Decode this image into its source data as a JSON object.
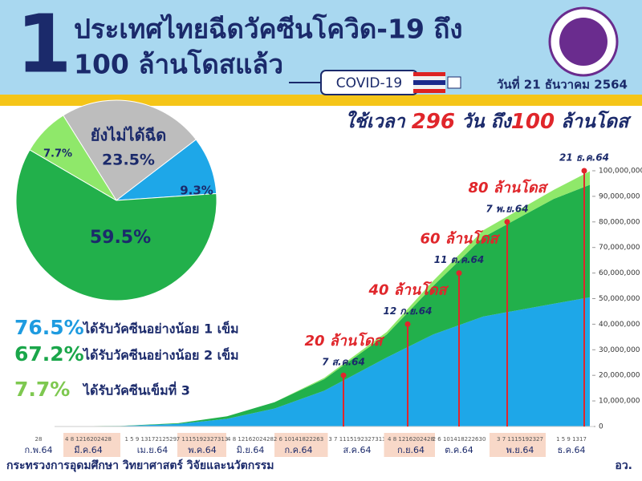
{
  "header": {
    "number": "1",
    "title_line1": "ประเทศไทยฉีดวัคซีนโควิด-19 ถึง",
    "title_line2": "100 ล้านโดสแล้ว",
    "banner": "COVID-19",
    "date": "วันที่ 21 ธันวาคม 2564"
  },
  "headline": [
    "ใช้เวลา ",
    "296",
    " วัน ถึง",
    "100",
    " ล้านโดส"
  ],
  "stats": [
    {
      "percent": "76.5%",
      "text": "ได้รับวัคซีนอย่างน้อย 1 เข็ม",
      "color": "#1e9be0"
    },
    {
      "percent": "67.2%",
      "text": "ได้รับวัคซีนอย่างน้อย 2 เข็ม",
      "color": "#1aa64a"
    },
    {
      "percent": "7.7%",
      "text": "ได้รับวัคซีนเข็มที่ 3",
      "color": "#7ec850"
    }
  ],
  "footer": {
    "ministry": "กระทรวงการอุดมศึกษา วิทยาศาสตร์ วิจัยและนวัตกรรม",
    "short": "อว."
  },
  "chart_data": [
    {
      "type": "pie",
      "categories": [
        "ยังไม่ได้ฉีด",
        null,
        null,
        null
      ],
      "values": [
        23.5,
        9.3,
        59.5,
        7.7
      ],
      "value_labels": [
        "23.5%",
        "9.3%",
        "59.5%",
        "7.7%"
      ],
      "colors": [
        "#bdbdbd",
        "#1ea7e8",
        "#22b04b",
        "#8fe86a"
      ]
    },
    {
      "type": "area",
      "stacked": true,
      "categories": [
        "ก.พ.64",
        "มี.ค.64",
        "เม.ย.64",
        "พ.ค.64",
        "มิ.ย.64",
        "ก.ค.64",
        "ส.ค.64",
        "ก.ย.64",
        "ต.ค.64",
        "พ.ย.64",
        "ธ.ค.64"
      ],
      "day_labels": [
        "28",
        "4 8 1216202428",
        "1 5 9 13172125293",
        "7 1115192327313",
        "4 8 1216202428",
        "2 6 10141822263",
        "3 7 1115192327313",
        "4 8 1216202428",
        "2 6 101418222630",
        "3 7 1115192327",
        "1 5 9 1317"
      ],
      "series": [
        {
          "color": "#1ea7e8",
          "values": [
            0,
            200000,
            1000000,
            3000000,
            7000000,
            14000000,
            27000000,
            36000000,
            43000000,
            48000000,
            50500000
          ]
        },
        {
          "color": "#22b04b",
          "values": [
            0,
            50000,
            300000,
            1000000,
            2500000,
            4500000,
            9000000,
            19000000,
            31000000,
            41000000,
            44000000
          ]
        },
        {
          "color": "#8fe86a",
          "values": [
            0,
            0,
            0,
            0,
            0,
            500000,
            1000000,
            2000000,
            2700000,
            3500000,
            5300000
          ]
        }
      ],
      "ylim": [
        0,
        100000000
      ],
      "yticks": [
        0,
        {
          "value": 10000000,
          "label": "10,000,000"
        },
        {
          "value": 20000000,
          "label": "20,000,000"
        },
        {
          "value": 30000000,
          "label": "30,000,000"
        },
        {
          "value": 40000000,
          "label": "40,000,000"
        },
        {
          "value": 50000000,
          "label": "50,000,000"
        },
        {
          "value": 60000000,
          "label": "60,000,000"
        },
        {
          "value": 70000000,
          "label": "70,000,000"
        },
        {
          "value": 80000000,
          "label": "80,000,000"
        },
        {
          "value": 90000000,
          "label": "90,000,000"
        },
        {
          "value": 100000000,
          "label": "100,000,000"
        }
      ],
      "annotations": [
        {
          "label": "20 ล้านโดส",
          "date": "7 ส.ค.64",
          "value": 20000000
        },
        {
          "label": "40 ล้านโดส",
          "date": "12 ก.ย.64",
          "value": 40000000
        },
        {
          "label": "60 ล้านโดส",
          "date": "11 ต.ค.64",
          "value": 60000000
        },
        {
          "label": "80 ล้านโดส",
          "date": "7 พ.ย.64",
          "value": 80000000
        },
        {
          "date": "21 ธ.ค.64",
          "value": 100000000
        }
      ],
      "annotation_color": "#e0262b"
    }
  ]
}
